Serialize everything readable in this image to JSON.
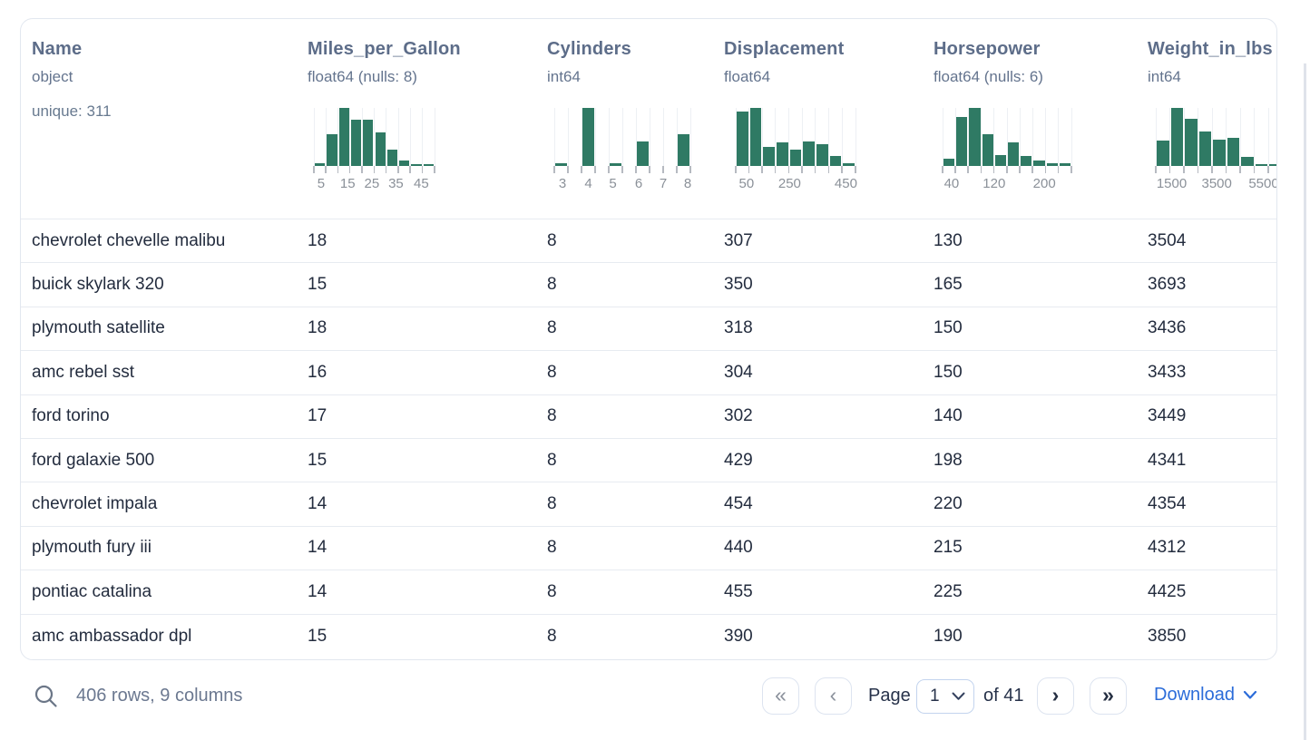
{
  "header": {
    "columns": [
      {
        "name": "Name",
        "dtype": "object",
        "note": "unique: 311",
        "hist": null
      },
      {
        "name": "Miles_per_Gallon",
        "dtype": "float64 (nulls: 8)",
        "hist": {
          "bars": [
            0.04,
            0.55,
            1.0,
            0.8,
            0.8,
            0.58,
            0.28,
            0.1,
            0.03,
            0.02
          ],
          "labels": [
            {
              "t": "5",
              "p": 0.06
            },
            {
              "t": "15",
              "p": 0.28
            },
            {
              "t": "25",
              "p": 0.48
            },
            {
              "t": "35",
              "p": 0.68
            },
            {
              "t": "45",
              "p": 0.89
            }
          ]
        }
      },
      {
        "name": "Cylinders",
        "dtype": "int64",
        "hist": {
          "bars": [
            0.05,
            0,
            1.0,
            0,
            0.04,
            0,
            0.42,
            0,
            0,
            0.55
          ],
          "labels": [
            {
              "t": "3",
              "p": 0.06
            },
            {
              "t": "4",
              "p": 0.25
            },
            {
              "t": "5",
              "p": 0.43
            },
            {
              "t": "6",
              "p": 0.62
            },
            {
              "t": "7",
              "p": 0.8
            },
            {
              "t": "8",
              "p": 0.98
            }
          ]
        }
      },
      {
        "name": "Displacement",
        "dtype": "float64",
        "hist": {
          "bars": [
            0.93,
            1.0,
            0.33,
            0.4,
            0.28,
            0.42,
            0.37,
            0.17,
            0.05
          ],
          "labels": [
            {
              "t": "50",
              "p": 0.09
            },
            {
              "t": "250",
              "p": 0.45
            },
            {
              "t": "450",
              "p": 0.92
            }
          ]
        }
      },
      {
        "name": "Horsepower",
        "dtype": "float64 (nulls: 6)",
        "hist": {
          "bars": [
            0.13,
            0.85,
            1.0,
            0.55,
            0.19,
            0.4,
            0.17,
            0.09,
            0.05,
            0.04
          ],
          "labels": [
            {
              "t": "40",
              "p": 0.07
            },
            {
              "t": "120",
              "p": 0.4
            },
            {
              "t": "200",
              "p": 0.79
            }
          ]
        }
      },
      {
        "name": "Weight_in_lbs",
        "dtype": "int64",
        "hist": {
          "bars": [
            0.43,
            1.0,
            0.82,
            0.6,
            0.46,
            0.49,
            0.16,
            0.02,
            0.01
          ],
          "labels": [
            {
              "t": "1500",
              "p": 0.125
            },
            {
              "t": "3500",
              "p": 0.48
            },
            {
              "t": "5500",
              "p": 0.85
            }
          ]
        }
      }
    ]
  },
  "rows": [
    [
      "chevrolet chevelle malibu",
      "18",
      "8",
      "307",
      "130",
      "3504"
    ],
    [
      "buick skylark 320",
      "15",
      "8",
      "350",
      "165",
      "3693"
    ],
    [
      "plymouth satellite",
      "18",
      "8",
      "318",
      "150",
      "3436"
    ],
    [
      "amc rebel sst",
      "16",
      "8",
      "304",
      "150",
      "3433"
    ],
    [
      "ford torino",
      "17",
      "8",
      "302",
      "140",
      "3449"
    ],
    [
      "ford galaxie 500",
      "15",
      "8",
      "429",
      "198",
      "4341"
    ],
    [
      "chevrolet impala",
      "14",
      "8",
      "454",
      "220",
      "4354"
    ],
    [
      "plymouth fury iii",
      "14",
      "8",
      "440",
      "215",
      "4312"
    ],
    [
      "pontiac catalina",
      "14",
      "8",
      "455",
      "225",
      "4425"
    ],
    [
      "amc ambassador dpl",
      "15",
      "8",
      "390",
      "190",
      "3850"
    ]
  ],
  "footer": {
    "summary": "406 rows, 9 columns",
    "first_icon": "«",
    "prev_icon": "‹",
    "next_icon": "›",
    "last_icon": "»",
    "page_label": "Page",
    "page_value": "1",
    "of_label": "of 41",
    "download_label": "Download"
  },
  "colors": {
    "histogram_bar": "#2f7a64",
    "accent_blue": "#2b6cd9",
    "header_text": "#5d6d89",
    "row_text": "#232c3e"
  }
}
